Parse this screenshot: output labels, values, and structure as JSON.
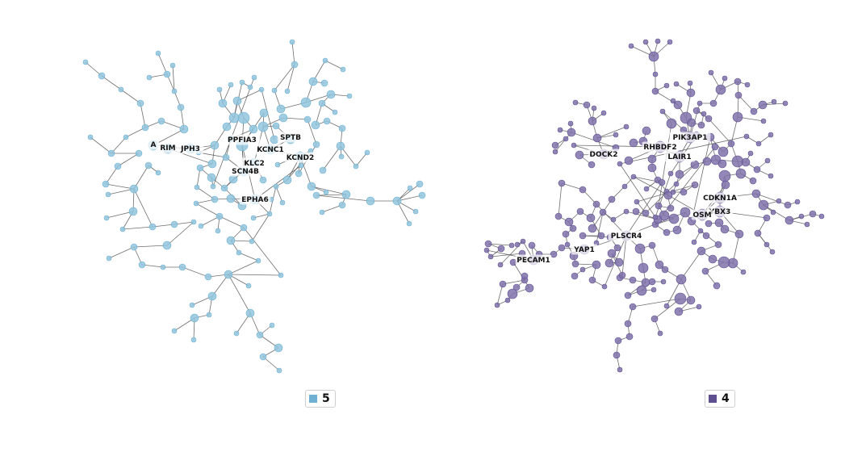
{
  "networks": [
    {
      "id": "left",
      "legend_label": "5",
      "color": "#6fb1d3",
      "fill": "#92c5de",
      "labels": [
        "PPFIA3",
        "SPTB",
        "KCNC1",
        "KCND2",
        "KLC2",
        "SCN4B",
        "EPHA6",
        "RIM",
        "JPH3",
        "A"
      ]
    },
    {
      "id": "right",
      "legend_label": "4",
      "color": "#5e4f91",
      "fill": "#7f72aa",
      "labels": [
        "PIK3AP1",
        "RHBDF2",
        "DOCK2",
        "LAIR1",
        "CDKN1A",
        "YBX3",
        "OSM",
        "PLSCR4",
        "YAP1",
        "PECAM1"
      ]
    }
  ]
}
